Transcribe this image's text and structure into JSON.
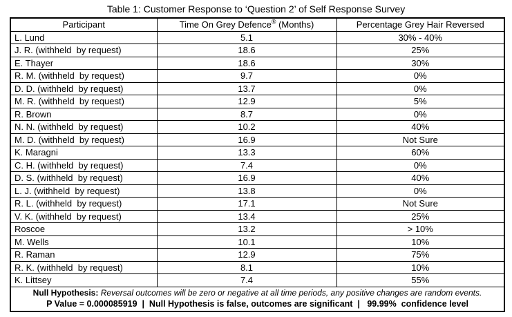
{
  "title": "Table 1: Customer Response to ‘Question 2’ of Self Response Survey",
  "table": {
    "header": {
      "participant": "Participant",
      "time_pre": "Time On Grey Defence",
      "time_sup": "®",
      "time_post": " (Months)",
      "percentage": "Percentage Grey Hair Reversed"
    },
    "rows": [
      {
        "participant": "L. Lund",
        "months": "5.1",
        "percentage": "30% - 40%"
      },
      {
        "participant": "J. R. (withheld  by request)",
        "months": "18.6",
        "percentage": "25%"
      },
      {
        "participant": "E. Thayer",
        "months": "18.6",
        "percentage": "30%"
      },
      {
        "participant": "R. M. (withheld  by request)",
        "months": "9.7",
        "percentage": "0%"
      },
      {
        "participant": "D. D. (withheld  by request)",
        "months": "13.7",
        "percentage": "0%"
      },
      {
        "participant": "M. R. (withheld  by request)",
        "months": "12.9",
        "percentage": "5%"
      },
      {
        "participant": "R. Brown",
        "months": "8.7",
        "percentage": "0%"
      },
      {
        "participant": "N. N. (withheld  by request)",
        "months": "10.2",
        "percentage": "40%"
      },
      {
        "participant": "M. D. (withheld  by request)",
        "months": "16.9",
        "percentage": "Not Sure"
      },
      {
        "participant": "K. Maragni",
        "months": "13.3",
        "percentage": "60%"
      },
      {
        "participant": "C. H. (withheld  by request)",
        "months": "7.4",
        "percentage": "0%"
      },
      {
        "participant": "D. S. (withheld  by request)",
        "months": "16.9",
        "percentage": "40%"
      },
      {
        "participant": "L. J. (withheld  by request)",
        "months": "13.8",
        "percentage": "0%"
      },
      {
        "participant": "R. L. (withheld  by request)",
        "months": "17.1",
        "percentage": "Not Sure"
      },
      {
        "participant": "V. K. (withheld  by request)",
        "months": "13.4",
        "percentage": "25%"
      },
      {
        "participant": "Roscoe",
        "months": "13.2",
        "percentage": "> 10%"
      },
      {
        "participant": "M. Wells",
        "months": "10.1",
        "percentage": "10%"
      },
      {
        "participant": "R. Raman",
        "months": "12.9",
        "percentage": "75%"
      },
      {
        "participant": "R. K. (withheld  by request)",
        "months": "8.1",
        "percentage": "10%"
      },
      {
        "participant": "K. Littsey",
        "months": "7.4",
        "percentage": "55%"
      }
    ]
  },
  "footer": {
    "null_hypothesis_label": "Null Hypothesis:",
    "null_hypothesis_text": "Reversal outcomes will be zero or negative at all time periods, any positive changes are random events.",
    "stats_line": "P Value = 0.000085919  |  Null Hypothesis is false, outcomes are significant  |   99.99%  confidence level"
  },
  "colors": {
    "background": "#ffffff",
    "text": "#000000",
    "border": "#000000"
  }
}
